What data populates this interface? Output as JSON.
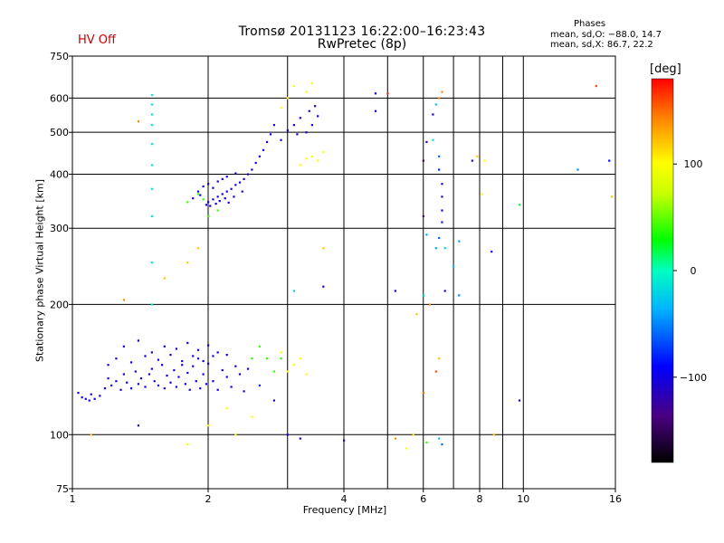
{
  "header": {
    "title_line1": "Tromsø 20131123 16:22:00–16:23:43",
    "title_line2": "RwPretec (8p)",
    "hv_status": "HV Off",
    "phases_label": "Phases",
    "phases_o": "mean, sd,O: −88.0, 14.7",
    "phases_x": "mean, sd,X:  86.7, 22.2"
  },
  "colors": {
    "hv_status": "#cc0000",
    "grid": "#000000",
    "background": "#ffffff"
  },
  "chart_data": {
    "type": "scatter",
    "title": "Tromsø 20131123 16:22:00–16:23:43",
    "subtitle": "RwPretec (8p)",
    "xlabel": "Frequency [MHz]",
    "ylabel": "Stationary phase Virtual Height [km]",
    "xscale": "log",
    "yscale": "log",
    "xlim": [
      1,
      16
    ],
    "ylim": [
      75,
      750
    ],
    "x_ticks": [
      1,
      2,
      4,
      6,
      8,
      10,
      16
    ],
    "x_tick_labels": [
      "1",
      "2",
      "4",
      "6",
      "8",
      "10",
      "16"
    ],
    "x_minor_ticks": [
      3,
      5,
      7,
      9
    ],
    "y_ticks": [
      75,
      100,
      200,
      300,
      400,
      500,
      600,
      750
    ],
    "y_tick_labels": [
      "75",
      "100",
      "200",
      "300",
      "400",
      "500",
      "600",
      "750"
    ],
    "grid": true,
    "colorbar": {
      "label": "[deg]",
      "range": [
        -180,
        180
      ],
      "ticks": [
        100,
        0,
        -100
      ],
      "tick_labels": [
        "100",
        "0",
        "−100"
      ]
    },
    "series": [
      {
        "color_by": "phase_deg",
        "points": [
          [
            1.03,
            125,
            -100
          ],
          [
            1.05,
            122,
            -100
          ],
          [
            1.07,
            121,
            -100
          ],
          [
            1.09,
            120,
            -100
          ],
          [
            1.1,
            124,
            -100
          ],
          [
            1.12,
            121,
            -100
          ],
          [
            1.15,
            123,
            -100
          ],
          [
            1.18,
            128,
            -100
          ],
          [
            1.2,
            135,
            -100
          ],
          [
            1.22,
            130,
            -100
          ],
          [
            1.25,
            133,
            -100
          ],
          [
            1.28,
            127,
            -100
          ],
          [
            1.3,
            138,
            -100
          ],
          [
            1.32,
            132,
            -100
          ],
          [
            1.35,
            128,
            -100
          ],
          [
            1.38,
            140,
            -100
          ],
          [
            1.4,
            131,
            -100
          ],
          [
            1.42,
            135,
            -100
          ],
          [
            1.45,
            129,
            -100
          ],
          [
            1.48,
            138,
            -100
          ],
          [
            1.5,
            142,
            -100
          ],
          [
            1.52,
            133,
            -100
          ],
          [
            1.55,
            130,
            -100
          ],
          [
            1.58,
            145,
            -100
          ],
          [
            1.6,
            128,
            -100
          ],
          [
            1.62,
            137,
            -100
          ],
          [
            1.65,
            132,
            -100
          ],
          [
            1.68,
            141,
            -100
          ],
          [
            1.7,
            129,
            -100
          ],
          [
            1.72,
            136,
            -100
          ],
          [
            1.75,
            148,
            -100
          ],
          [
            1.78,
            131,
            -100
          ],
          [
            1.8,
            139,
            -100
          ],
          [
            1.82,
            127,
            -100
          ],
          [
            1.85,
            144,
            -100
          ],
          [
            1.88,
            133,
            -100
          ],
          [
            1.9,
            150,
            -100
          ],
          [
            1.92,
            128,
            -100
          ],
          [
            1.95,
            138,
            -100
          ],
          [
            1.98,
            131,
            -100
          ],
          [
            2.0,
            146,
            -100
          ],
          [
            2.05,
            133,
            -100
          ],
          [
            2.1,
            127,
            -100
          ],
          [
            2.15,
            141,
            -100
          ],
          [
            2.2,
            136,
            -100
          ],
          [
            2.25,
            129,
            -100
          ],
          [
            2.3,
            144,
            -100
          ],
          [
            2.35,
            138,
            -100
          ],
          [
            2.4,
            126,
            -100
          ],
          [
            2.45,
            142,
            -100
          ],
          [
            1.3,
            160,
            -100
          ],
          [
            1.4,
            165,
            -100
          ],
          [
            1.5,
            155,
            -100
          ],
          [
            1.6,
            160,
            -100
          ],
          [
            1.7,
            158,
            -100
          ],
          [
            1.8,
            163,
            -100
          ],
          [
            1.9,
            157,
            -100
          ],
          [
            2.0,
            161,
            -100
          ],
          [
            2.1,
            155,
            -100
          ],
          [
            2.2,
            153,
            -100
          ],
          [
            1.2,
            145,
            -100
          ],
          [
            1.25,
            150,
            -100
          ],
          [
            1.35,
            147,
            -100
          ],
          [
            1.45,
            152,
            -100
          ],
          [
            1.55,
            149,
            -100
          ],
          [
            1.65,
            153,
            -100
          ],
          [
            1.75,
            145,
            -100
          ],
          [
            1.85,
            152,
            -100
          ],
          [
            1.95,
            148,
            -100
          ],
          [
            2.05,
            152,
            -100
          ],
          [
            1.98,
            340,
            -100
          ],
          [
            2.0,
            345,
            -100
          ],
          [
            2.02,
            338,
            -100
          ],
          [
            2.05,
            350,
            -100
          ],
          [
            2.08,
            342,
            -100
          ],
          [
            2.1,
            355,
            -100
          ],
          [
            2.12,
            347,
            -100
          ],
          [
            2.15,
            360,
            -100
          ],
          [
            2.18,
            352,
            -100
          ],
          [
            2.2,
            365,
            -100
          ],
          [
            2.25,
            370,
            -100
          ],
          [
            2.3,
            378,
            -100
          ],
          [
            2.35,
            383,
            -100
          ],
          [
            2.4,
            390,
            -100
          ],
          [
            2.45,
            400,
            -100
          ],
          [
            2.5,
            410,
            -100
          ],
          [
            2.55,
            425,
            -100
          ],
          [
            2.6,
            440,
            -100
          ],
          [
            2.65,
            455,
            -100
          ],
          [
            2.7,
            475,
            -100
          ],
          [
            2.75,
            495,
            -100
          ],
          [
            2.8,
            520,
            -100
          ],
          [
            1.9,
            365,
            -100
          ],
          [
            1.95,
            375,
            -100
          ],
          [
            2.0,
            380,
            -100
          ],
          [
            2.05,
            372,
            -100
          ],
          [
            2.1,
            385,
            -100
          ],
          [
            2.15,
            390,
            -100
          ],
          [
            2.2,
            395,
            -100
          ],
          [
            2.3,
            402,
            -100
          ],
          [
            1.85,
            352,
            -100
          ],
          [
            1.92,
            358,
            -100
          ],
          [
            2.22,
            344,
            -100
          ],
          [
            2.28,
            355,
            -100
          ],
          [
            2.38,
            365,
            -100
          ],
          [
            3.0,
            505,
            -100
          ],
          [
            3.1,
            520,
            -100
          ],
          [
            3.15,
            495,
            -100
          ],
          [
            3.2,
            540,
            -100
          ],
          [
            3.3,
            500,
            -100
          ],
          [
            3.35,
            560,
            -100
          ],
          [
            3.4,
            520,
            -100
          ],
          [
            3.45,
            575,
            -100
          ],
          [
            3.5,
            545,
            -100
          ],
          [
            2.9,
            480,
            -100
          ],
          [
            1.5,
            610,
            -10
          ],
          [
            1.5,
            580,
            -10
          ],
          [
            1.5,
            550,
            -10
          ],
          [
            1.5,
            520,
            -10
          ],
          [
            1.5,
            470,
            -10
          ],
          [
            1.5,
            420,
            -10
          ],
          [
            1.5,
            370,
            -10
          ],
          [
            1.5,
            320,
            -10
          ],
          [
            1.5,
            250,
            -10
          ],
          [
            1.5,
            200,
            -10
          ],
          [
            1.9,
            360,
            40
          ],
          [
            1.95,
            350,
            40
          ],
          [
            1.8,
            345,
            40
          ],
          [
            2.0,
            320,
            40
          ],
          [
            2.1,
            330,
            40
          ],
          [
            2.5,
            150,
            40
          ],
          [
            2.6,
            160,
            40
          ],
          [
            2.7,
            150,
            40
          ],
          [
            2.8,
            140,
            40
          ],
          [
            2.9,
            150,
            40
          ],
          [
            3.2,
            420,
            100
          ],
          [
            3.3,
            435,
            100
          ],
          [
            3.4,
            440,
            100
          ],
          [
            3.5,
            430,
            100
          ],
          [
            3.6,
            450,
            100
          ],
          [
            3.0,
            140,
            100
          ],
          [
            3.1,
            145,
            100
          ],
          [
            3.2,
            150,
            100
          ],
          [
            2.9,
            155,
            100
          ],
          [
            3.3,
            138,
            100
          ],
          [
            2.9,
            570,
            100
          ],
          [
            3.0,
            600,
            100
          ],
          [
            3.1,
            640,
            100
          ],
          [
            3.3,
            620,
            100
          ],
          [
            3.4,
            650,
            100
          ],
          [
            2.5,
            110,
            100
          ],
          [
            2.2,
            115,
            100
          ],
          [
            2.0,
            105,
            100
          ],
          [
            2.3,
            100,
            100
          ],
          [
            1.8,
            95,
            100
          ],
          [
            1.6,
            230,
            120
          ],
          [
            1.8,
            250,
            120
          ],
          [
            1.9,
            270,
            120
          ],
          [
            1.3,
            205,
            140
          ],
          [
            1.4,
            530,
            140
          ],
          [
            1.1,
            100,
            120
          ],
          [
            1.4,
            105,
            -120
          ],
          [
            3.2,
            98,
            -100
          ],
          [
            5.5,
            93,
            100
          ],
          [
            6.1,
            96,
            40
          ],
          [
            6.4,
            580,
            -30
          ],
          [
            6.3,
            550,
            -100
          ],
          [
            6.5,
            600,
            140
          ],
          [
            6.6,
            620,
            140
          ],
          [
            6.3,
            480,
            -10
          ],
          [
            6.5,
            440,
            -60
          ],
          [
            6.5,
            410,
            -80
          ],
          [
            6.6,
            380,
            -100
          ],
          [
            6.6,
            355,
            -120
          ],
          [
            6.6,
            330,
            -100
          ],
          [
            6.6,
            310,
            -80
          ],
          [
            6.5,
            285,
            -60
          ],
          [
            6.4,
            270,
            -40
          ],
          [
            6.7,
            270,
            -20
          ],
          [
            6.7,
            215,
            -100
          ],
          [
            6.1,
            475,
            -130
          ],
          [
            6.0,
            430,
            -150
          ],
          [
            6.0,
            320,
            -130
          ],
          [
            6.1,
            290,
            -40
          ],
          [
            6.0,
            210,
            -20
          ],
          [
            6.2,
            200,
            140
          ],
          [
            5.8,
            190,
            120
          ],
          [
            6.5,
            150,
            120
          ],
          [
            6.4,
            140,
            160
          ],
          [
            6.0,
            125,
            150
          ],
          [
            5.7,
            100,
            110
          ],
          [
            5.2,
            98,
            140
          ],
          [
            6.5,
            98,
            -30
          ],
          [
            6.6,
            95,
            -60
          ],
          [
            4.0,
            97,
            -100
          ],
          [
            4.7,
            615,
            -100
          ],
          [
            5.0,
            615,
            170
          ],
          [
            4.7,
            560,
            -100
          ],
          [
            5.2,
            215,
            -100
          ],
          [
            7.2,
            210,
            -50
          ],
          [
            7.0,
            245,
            -30
          ],
          [
            7.2,
            280,
            -40
          ],
          [
            7.7,
            430,
            -100
          ],
          [
            7.9,
            440,
            120
          ],
          [
            8.1,
            360,
            100
          ],
          [
            8.2,
            430,
            100
          ],
          [
            8.5,
            265,
            -100
          ],
          [
            8.6,
            100,
            120
          ],
          [
            9.8,
            120,
            -110
          ],
          [
            9.8,
            340,
            20
          ],
          [
            13.2,
            410,
            -50
          ],
          [
            14.5,
            640,
            160
          ],
          [
            15.5,
            430,
            -90
          ],
          [
            15.7,
            355,
            120
          ],
          [
            3.6,
            220,
            -100
          ],
          [
            3.6,
            270,
            120
          ],
          [
            3.1,
            215,
            -20
          ],
          [
            3.0,
            100,
            -100
          ],
          [
            2.6,
            130,
            -80
          ],
          [
            2.8,
            120,
            -110
          ]
        ]
      }
    ]
  }
}
